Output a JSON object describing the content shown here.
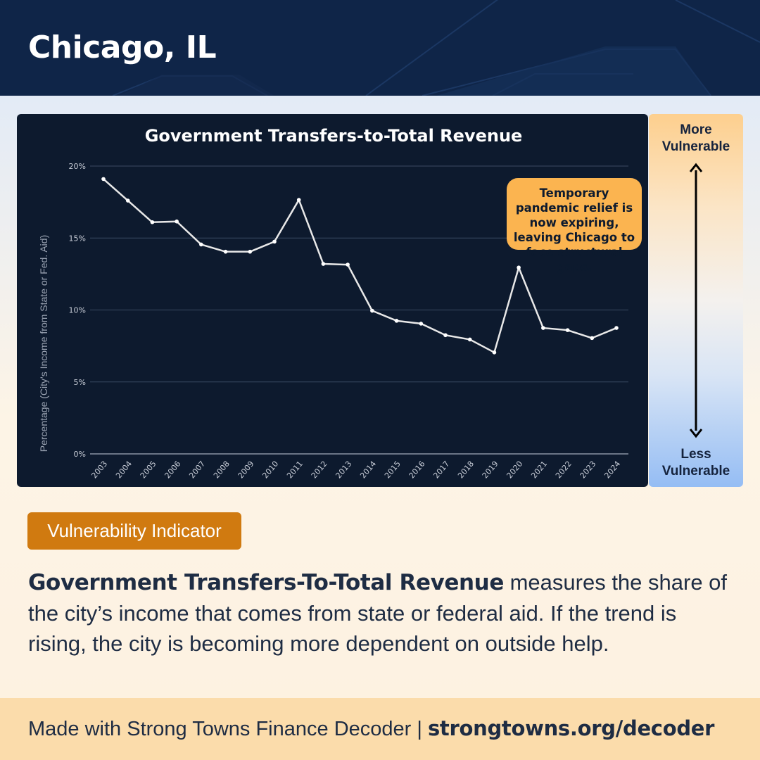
{
  "header": {
    "title": "Chicago, IL"
  },
  "chart_data": {
    "type": "line",
    "title": "Government Transfers-to-Total Revenue",
    "ylabel": "Percentage (City's Income from State or Fed. Aid)",
    "xlabel": "",
    "ylim": [
      0,
      20
    ],
    "ytick_values": [
      0,
      5,
      10,
      15,
      20
    ],
    "ytick_labels": [
      "0%",
      "5%",
      "10%",
      "15%",
      "20%"
    ],
    "grid": true,
    "line_color": "#e8e8e8",
    "categories": [
      "2003",
      "2004",
      "2005",
      "2006",
      "2007",
      "2008",
      "2009",
      "2010",
      "2011",
      "2012",
      "2013",
      "2014",
      "2015",
      "2016",
      "2017",
      "2018",
      "2019",
      "2020",
      "2021",
      "2022",
      "2023",
      "2024"
    ],
    "values": [
      19.1,
      17.6,
      16.1,
      16.15,
      14.55,
      14.05,
      14.05,
      14.75,
      17.65,
      13.2,
      13.15,
      9.95,
      9.25,
      9.05,
      8.25,
      7.95,
      7.05,
      12.95,
      8.75,
      8.6,
      8.05,
      8.75
    ]
  },
  "annotation": {
    "text": "Temporary pandemic relief is now expiring, leaving Chicago to face structural gaps."
  },
  "scale": {
    "top_label": "More\nVulnerable",
    "bottom_label": "Less\nVulnerable"
  },
  "badge": {
    "label": "Vulnerability Indicator"
  },
  "description": {
    "term": "Government Transfers-To-Total Revenue",
    "text": " measures the share of the city’s income that comes from state or federal aid. If the trend is rising, the city is becoming more dependent on outside help."
  },
  "footer": {
    "prefix": "Made with Strong Towns Finance Decoder | ",
    "link": "strongtowns.org/decoder"
  },
  "colors": {
    "header_bg": "#0f2548",
    "chart_bg": "#0d1a2e",
    "annotation_bg": "#fbb450",
    "badge_bg": "#d07a10",
    "footer_bg": "#fbdcab",
    "text_dark": "#1e2c43"
  }
}
